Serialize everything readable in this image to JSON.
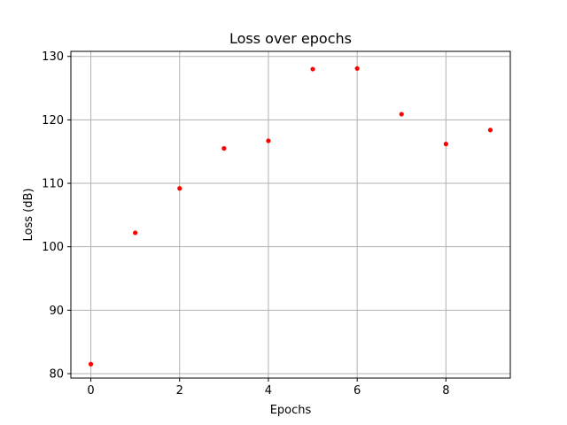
{
  "chart_data": {
    "type": "scatter",
    "title": "Loss over epochs",
    "xlabel": "Epochs",
    "ylabel": "Loss (dB)",
    "xlim": [
      -0.45,
      9.45
    ],
    "ylim": [
      79.3,
      130.8
    ],
    "xticks": [
      0,
      2,
      4,
      6,
      8
    ],
    "yticks": [
      80,
      90,
      100,
      110,
      120,
      130
    ],
    "grid": true,
    "marker_color": "#ff0000",
    "grid_color": "#b0b0b0",
    "series": [
      {
        "x": [
          0,
          1,
          2,
          3,
          4,
          5,
          6,
          7,
          8,
          9
        ],
        "y": [
          81.5,
          102.2,
          109.2,
          115.5,
          116.7,
          128.0,
          128.1,
          120.9,
          116.2,
          118.4
        ]
      }
    ]
  }
}
